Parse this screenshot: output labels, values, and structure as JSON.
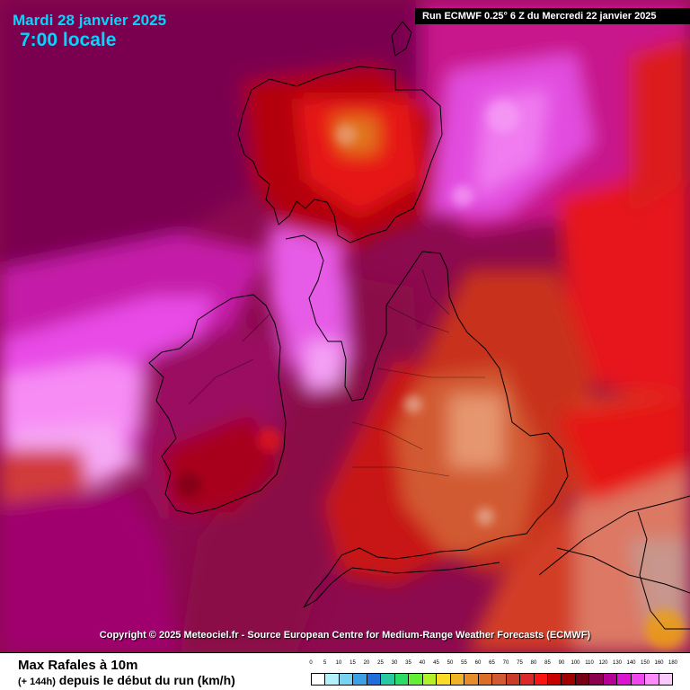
{
  "header": {
    "date": "Mardi 28 janvier 2025",
    "time": "7:00 locale",
    "run": "Run ECMWF 0.25° 6 Z du Mercredi 22 janvier 2025"
  },
  "copyright": "Copyright © 2025 Meteociel.fr - Source European Centre for Medium-Range Weather Forecasts (ECMWF)",
  "footer": {
    "title": "Max Rafales à 10m",
    "subtitle_small": "(+ 144h)",
    "subtitle": "depuis le début du run (km/h)"
  },
  "legend": {
    "labels": [
      "0",
      "5",
      "10",
      "15",
      "20",
      "25",
      "30",
      "35",
      "40",
      "45",
      "50",
      "55",
      "60",
      "65",
      "70",
      "75",
      "80",
      "85",
      "90",
      "100",
      "110",
      "120",
      "130",
      "140",
      "150",
      "160",
      "180"
    ],
    "colors": [
      "#ffffff",
      "#b4f0fa",
      "#78d2f0",
      "#3ca0e6",
      "#1e6edc",
      "#28c8a0",
      "#28dc64",
      "#64f032",
      "#b4f028",
      "#fadc28",
      "#f0b428",
      "#e68c28",
      "#dc6e28",
      "#d25a32",
      "#c83c28",
      "#dc2828",
      "#fa1414",
      "#c80000",
      "#a00000",
      "#780014",
      "#8c0050",
      "#b40096",
      "#dc14d2",
      "#f046f0",
      "#fa8cfa",
      "#fac8fa"
    ]
  }
}
